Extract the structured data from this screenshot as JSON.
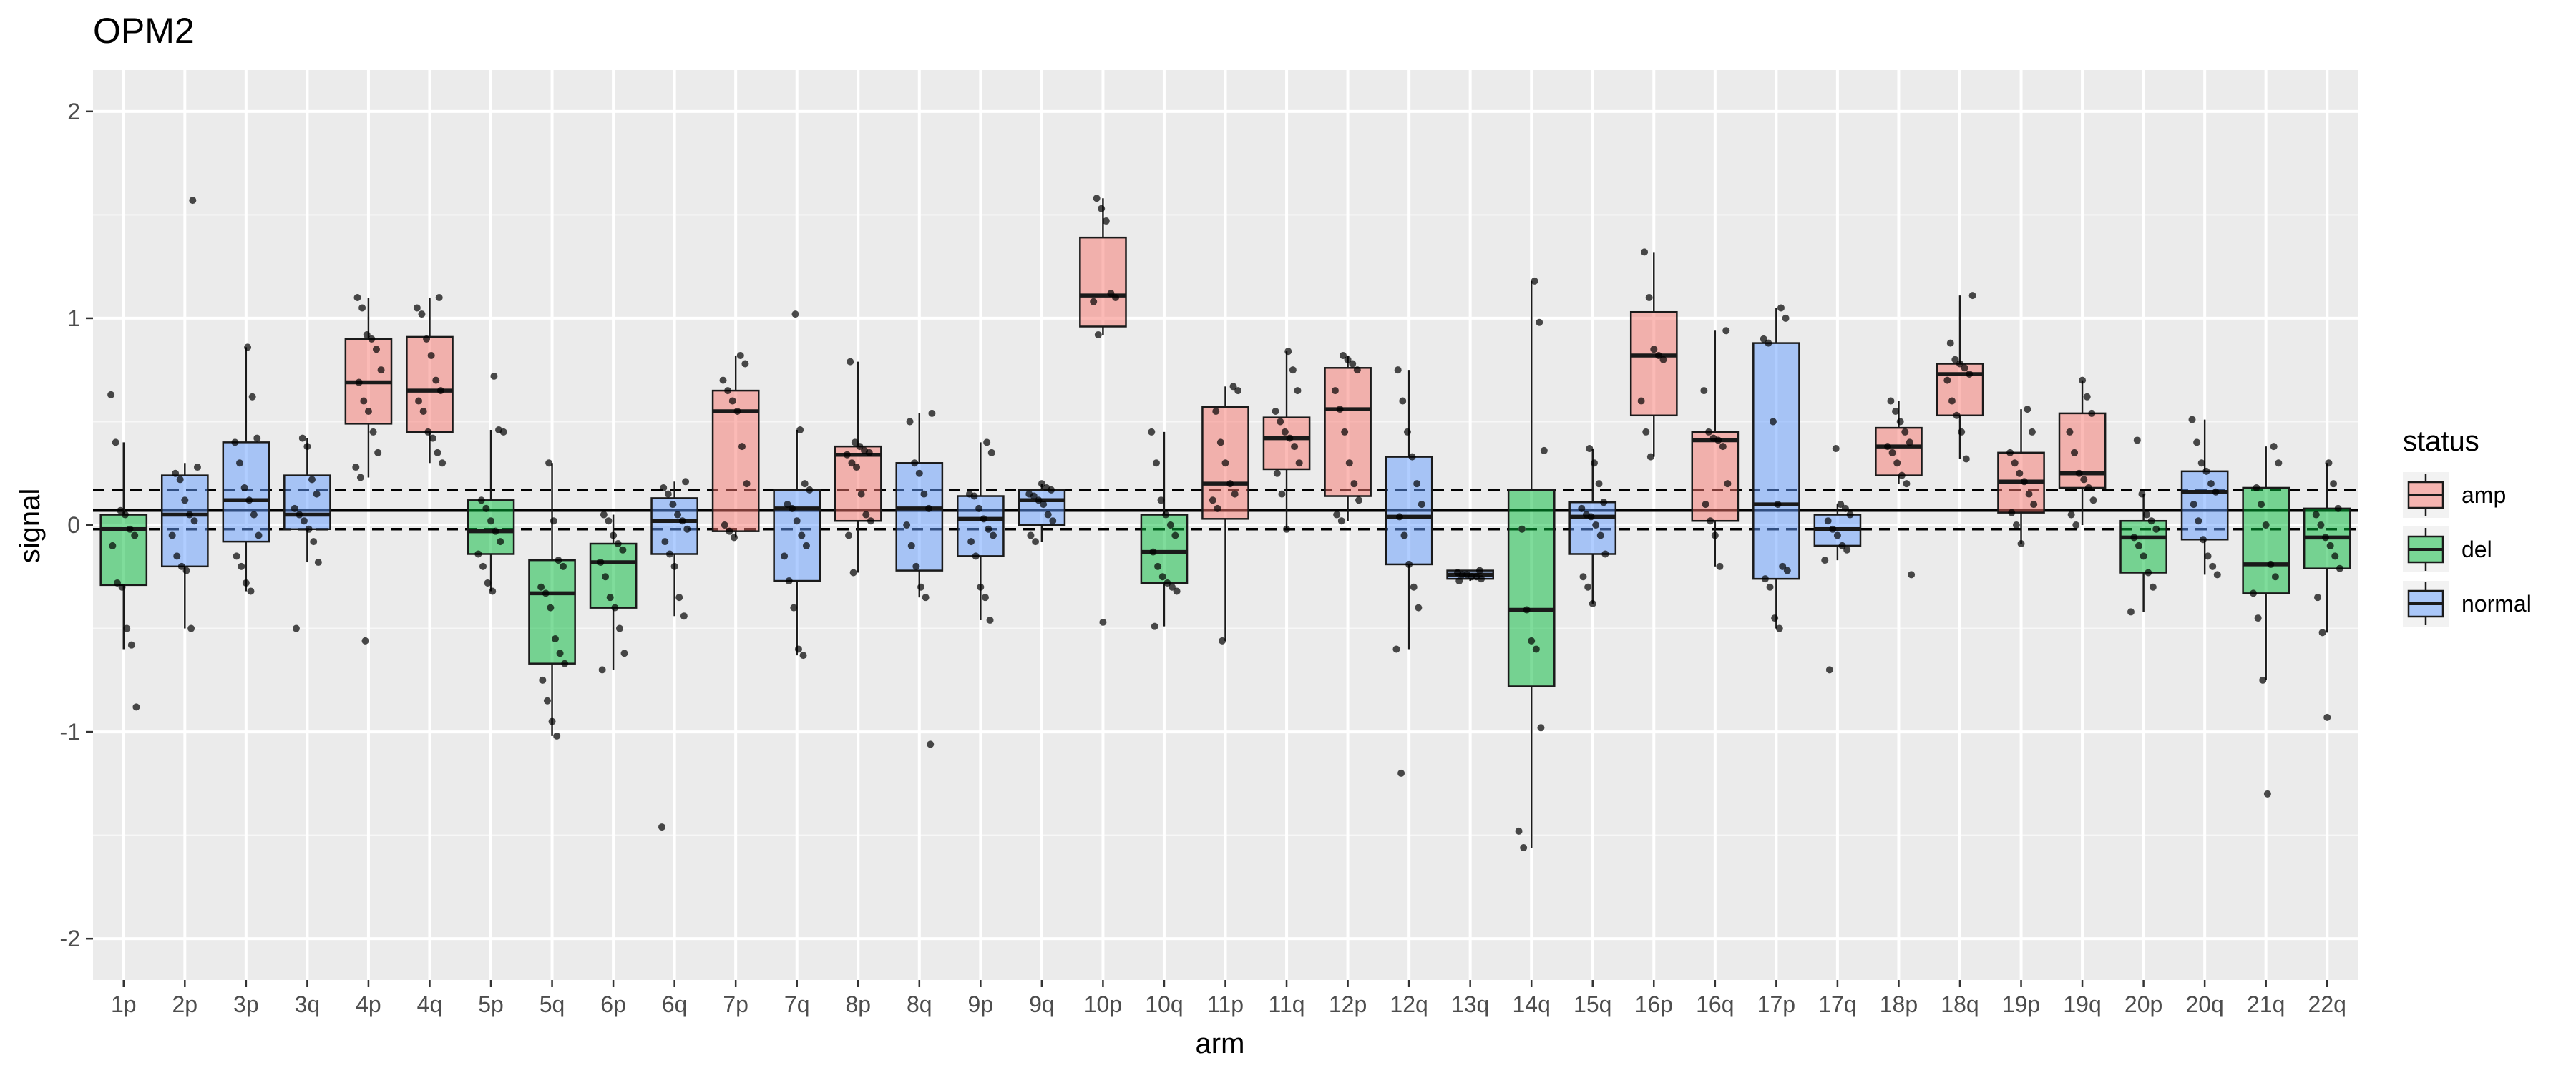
{
  "chart_data": {
    "type": "boxplot",
    "title": "OPM2",
    "xlabel": "arm",
    "ylabel": "signal",
    "ylim": [
      -2.2,
      2.2
    ],
    "yticks": [
      -2,
      -1,
      0,
      1,
      2
    ],
    "grid": true,
    "reference_lines": [
      {
        "y": 0.07,
        "style": "solid"
      },
      {
        "y": 0.17,
        "style": "dashed"
      },
      {
        "y": -0.02,
        "style": "dashed"
      }
    ],
    "legend": {
      "title": "status",
      "position": "right",
      "entries": [
        {
          "label": "amp",
          "color": "#F8766D"
        },
        {
          "label": "del",
          "color": "#00BA38"
        },
        {
          "label": "normal",
          "color": "#619CFF"
        }
      ]
    },
    "categories": [
      "1p",
      "2p",
      "3p",
      "3q",
      "4p",
      "4q",
      "5p",
      "5q",
      "6p",
      "6q",
      "7p",
      "7q",
      "8p",
      "8q",
      "9p",
      "9q",
      "10p",
      "10q",
      "11p",
      "11q",
      "12p",
      "12q",
      "13q",
      "14q",
      "15q",
      "16p",
      "16q",
      "17p",
      "17q",
      "18p",
      "18q",
      "19p",
      "19q",
      "20p",
      "20q",
      "21q",
      "22q"
    ],
    "boxes": [
      {
        "arm": "1p",
        "status": "del",
        "q1": -0.29,
        "median": -0.02,
        "q3": 0.05,
        "whisker_low": -0.6,
        "whisker_high": 0.4,
        "points": [
          0.63,
          0.4,
          0.07,
          0.05,
          -0.02,
          -0.05,
          -0.1,
          -0.28,
          -0.3,
          -0.5,
          -0.58,
          -0.88
        ]
      },
      {
        "arm": "2p",
        "status": "normal",
        "q1": -0.2,
        "median": 0.05,
        "q3": 0.24,
        "whisker_low": -0.5,
        "whisker_high": 0.3,
        "points": [
          1.57,
          0.28,
          0.25,
          0.22,
          0.12,
          0.05,
          0.02,
          -0.05,
          -0.15,
          -0.2,
          -0.22,
          -0.5
        ]
      },
      {
        "arm": "3p",
        "status": "normal",
        "q1": -0.08,
        "median": 0.12,
        "q3": 0.4,
        "whisker_low": -0.32,
        "whisker_high": 0.86,
        "points": [
          0.86,
          0.62,
          0.42,
          0.4,
          0.3,
          0.18,
          0.12,
          0.05,
          -0.05,
          -0.15,
          -0.2,
          -0.28,
          -0.32
        ]
      },
      {
        "arm": "3q",
        "status": "normal",
        "q1": -0.02,
        "median": 0.05,
        "q3": 0.24,
        "whisker_low": -0.18,
        "whisker_high": 0.42,
        "points": [
          0.42,
          0.38,
          0.22,
          0.15,
          0.08,
          0.05,
          0.02,
          -0.02,
          -0.08,
          -0.18,
          -0.5
        ]
      },
      {
        "arm": "4p",
        "status": "amp",
        "q1": 0.49,
        "median": 0.69,
        "q3": 0.9,
        "whisker_low": 0.23,
        "whisker_high": 1.1,
        "points": [
          1.1,
          1.05,
          0.92,
          0.9,
          0.85,
          0.75,
          0.69,
          0.6,
          0.55,
          0.45,
          0.35,
          0.28,
          0.23,
          -0.56
        ]
      },
      {
        "arm": "4q",
        "status": "amp",
        "q1": 0.45,
        "median": 0.65,
        "q3": 0.91,
        "whisker_low": 0.3,
        "whisker_high": 1.1,
        "points": [
          1.1,
          1.05,
          1.02,
          0.9,
          0.82,
          0.7,
          0.65,
          0.6,
          0.55,
          0.45,
          0.42,
          0.35,
          0.3
        ]
      },
      {
        "arm": "5p",
        "status": "del",
        "q1": -0.14,
        "median": -0.03,
        "q3": 0.12,
        "whisker_low": -0.32,
        "whisker_high": 0.46,
        "points": [
          0.72,
          0.46,
          0.45,
          0.12,
          0.08,
          0.02,
          -0.03,
          -0.08,
          -0.14,
          -0.2,
          -0.28,
          -0.32
        ]
      },
      {
        "arm": "5q",
        "status": "del",
        "q1": -0.67,
        "median": -0.33,
        "q3": -0.17,
        "whisker_low": -1.02,
        "whisker_high": 0.3,
        "points": [
          0.3,
          0.02,
          -0.17,
          -0.2,
          -0.3,
          -0.33,
          -0.4,
          -0.55,
          -0.62,
          -0.67,
          -0.75,
          -0.85,
          -0.95,
          -1.02
        ]
      },
      {
        "arm": "6p",
        "status": "del",
        "q1": -0.4,
        "median": -0.18,
        "q3": -0.09,
        "whisker_low": -0.7,
        "whisker_high": 0.05,
        "points": [
          0.05,
          0.02,
          -0.05,
          -0.09,
          -0.12,
          -0.18,
          -0.25,
          -0.35,
          -0.4,
          -0.5,
          -0.62,
          -0.7
        ]
      },
      {
        "arm": "6q",
        "status": "normal",
        "q1": -0.14,
        "median": 0.02,
        "q3": 0.13,
        "whisker_low": -0.44,
        "whisker_high": 0.21,
        "points": [
          0.21,
          0.18,
          0.15,
          0.1,
          0.05,
          0.02,
          -0.02,
          -0.08,
          -0.14,
          -0.2,
          -0.35,
          -0.44,
          -1.46
        ]
      },
      {
        "arm": "7p",
        "status": "amp",
        "q1": -0.03,
        "median": 0.55,
        "q3": 0.65,
        "whisker_low": -0.06,
        "whisker_high": 0.82,
        "points": [
          0.82,
          0.78,
          0.7,
          0.65,
          0.6,
          0.55,
          0.38,
          0.2,
          0.0,
          -0.03,
          -0.06
        ]
      },
      {
        "arm": "7q",
        "status": "normal",
        "q1": -0.27,
        "median": 0.08,
        "q3": 0.17,
        "whisker_low": -0.63,
        "whisker_high": 0.46,
        "points": [
          1.02,
          0.46,
          0.2,
          0.17,
          0.1,
          0.08,
          0.02,
          -0.05,
          -0.1,
          -0.15,
          -0.27,
          -0.4,
          -0.6,
          -0.63
        ]
      },
      {
        "arm": "8p",
        "status": "amp",
        "q1": 0.02,
        "median": 0.34,
        "q3": 0.38,
        "whisker_low": -0.23,
        "whisker_high": 0.79,
        "points": [
          0.79,
          0.4,
          0.38,
          0.36,
          0.35,
          0.34,
          0.3,
          0.28,
          0.15,
          0.05,
          0.02,
          -0.05,
          -0.23
        ]
      },
      {
        "arm": "8q",
        "status": "normal",
        "q1": -0.22,
        "median": 0.08,
        "q3": 0.3,
        "whisker_low": -0.35,
        "whisker_high": 0.54,
        "points": [
          0.54,
          0.5,
          0.3,
          0.25,
          0.15,
          0.08,
          0.0,
          -0.1,
          -0.2,
          -0.3,
          -0.35,
          -1.06
        ]
      },
      {
        "arm": "9p",
        "status": "normal",
        "q1": -0.15,
        "median": 0.03,
        "q3": 0.14,
        "whisker_low": -0.46,
        "whisker_high": 0.4,
        "points": [
          0.4,
          0.35,
          0.15,
          0.14,
          0.08,
          0.03,
          -0.02,
          -0.05,
          -0.08,
          -0.15,
          -0.3,
          -0.35,
          -0.46
        ]
      },
      {
        "arm": "9q",
        "status": "normal",
        "q1": 0.0,
        "median": 0.12,
        "q3": 0.17,
        "whisker_low": -0.08,
        "whisker_high": 0.2,
        "points": [
          0.2,
          0.18,
          0.17,
          0.15,
          0.14,
          0.12,
          0.1,
          0.05,
          0.02,
          -0.05,
          -0.08
        ]
      },
      {
        "arm": "10p",
        "status": "amp",
        "q1": 0.96,
        "median": 1.11,
        "q3": 1.39,
        "whisker_low": 0.92,
        "whisker_high": 1.58,
        "points": [
          1.58,
          1.53,
          1.47,
          1.12,
          1.1,
          1.08,
          0.92,
          -0.47
        ]
      },
      {
        "arm": "10q",
        "status": "del",
        "q1": -0.28,
        "median": -0.13,
        "q3": 0.05,
        "whisker_low": -0.49,
        "whisker_high": 0.45,
        "points": [
          0.45,
          0.3,
          0.12,
          0.05,
          0.0,
          -0.05,
          -0.13,
          -0.2,
          -0.25,
          -0.28,
          -0.3,
          -0.32,
          -0.49
        ]
      },
      {
        "arm": "11p",
        "status": "amp",
        "q1": 0.03,
        "median": 0.2,
        "q3": 0.57,
        "whisker_low": -0.56,
        "whisker_high": 0.67,
        "points": [
          0.67,
          0.65,
          0.55,
          0.4,
          0.3,
          0.2,
          0.15,
          0.12,
          0.08,
          -0.56
        ]
      },
      {
        "arm": "11q",
        "status": "amp",
        "q1": 0.27,
        "median": 0.42,
        "q3": 0.52,
        "whisker_low": -0.02,
        "whisker_high": 0.84,
        "points": [
          0.84,
          0.75,
          0.65,
          0.55,
          0.5,
          0.45,
          0.42,
          0.38,
          0.3,
          0.25,
          0.15,
          -0.02
        ]
      },
      {
        "arm": "12p",
        "status": "amp",
        "q1": 0.14,
        "median": 0.56,
        "q3": 0.76,
        "whisker_low": 0.02,
        "whisker_high": 0.82,
        "points": [
          0.82,
          0.8,
          0.78,
          0.75,
          0.65,
          0.56,
          0.45,
          0.3,
          0.2,
          0.12,
          0.05,
          0.02
        ]
      },
      {
        "arm": "12q",
        "status": "normal",
        "q1": -0.19,
        "median": 0.04,
        "q3": 0.33,
        "whisker_low": -0.6,
        "whisker_high": 0.75,
        "points": [
          0.75,
          0.6,
          0.45,
          0.33,
          0.2,
          0.1,
          0.04,
          -0.05,
          -0.19,
          -0.3,
          -0.4,
          -0.6,
          -1.2
        ]
      },
      {
        "arm": "13q",
        "status": "normal",
        "q1": -0.26,
        "median": -0.24,
        "q3": -0.22,
        "whisker_low": -0.27,
        "whisker_high": -0.22,
        "points": [
          -0.22,
          -0.23,
          -0.24,
          -0.24,
          -0.25,
          -0.25,
          -0.26,
          -0.27
        ]
      },
      {
        "arm": "14q",
        "status": "del",
        "q1": -0.78,
        "median": -0.41,
        "q3": 0.17,
        "whisker_low": -1.56,
        "whisker_high": 1.18,
        "points": [
          1.18,
          0.98,
          0.36,
          -0.02,
          -0.41,
          -0.56,
          -0.6,
          -0.98,
          -1.48,
          -1.56
        ]
      },
      {
        "arm": "15q",
        "status": "normal",
        "q1": -0.14,
        "median": 0.04,
        "q3": 0.11,
        "whisker_low": -0.38,
        "whisker_high": 0.37,
        "points": [
          0.37,
          0.3,
          0.2,
          0.11,
          0.08,
          0.05,
          0.04,
          0.0,
          -0.05,
          -0.14,
          -0.25,
          -0.3,
          -0.38
        ]
      },
      {
        "arm": "16p",
        "status": "amp",
        "q1": 0.53,
        "median": 0.82,
        "q3": 1.03,
        "whisker_low": 0.33,
        "whisker_high": 1.32,
        "points": [
          1.32,
          1.1,
          0.85,
          0.82,
          0.8,
          0.6,
          0.45,
          0.33
        ]
      },
      {
        "arm": "16q",
        "status": "amp",
        "q1": 0.02,
        "median": 0.41,
        "q3": 0.45,
        "whisker_low": -0.2,
        "whisker_high": 0.94,
        "points": [
          0.94,
          0.65,
          0.45,
          0.42,
          0.41,
          0.38,
          0.2,
          0.1,
          0.02,
          -0.05,
          -0.2
        ]
      },
      {
        "arm": "17p",
        "status": "normal",
        "q1": -0.26,
        "median": 0.1,
        "q3": 0.88,
        "whisker_low": -0.5,
        "whisker_high": 1.05,
        "points": [
          1.05,
          1.0,
          0.9,
          0.88,
          0.5,
          0.1,
          -0.2,
          -0.22,
          -0.26,
          -0.3,
          -0.45,
          -0.5
        ]
      },
      {
        "arm": "17q",
        "status": "normal",
        "q1": -0.1,
        "median": -0.02,
        "q3": 0.05,
        "whisker_low": -0.17,
        "whisker_high": 0.1,
        "points": [
          0.37,
          0.1,
          0.08,
          0.05,
          0.02,
          -0.02,
          -0.05,
          -0.1,
          -0.12,
          -0.17,
          -0.7
        ]
      },
      {
        "arm": "18p",
        "status": "amp",
        "q1": 0.24,
        "median": 0.38,
        "q3": 0.47,
        "whisker_low": 0.2,
        "whisker_high": 0.6,
        "points": [
          0.6,
          0.55,
          0.5,
          0.45,
          0.4,
          0.38,
          0.35,
          0.3,
          0.24,
          0.2,
          -0.24
        ]
      },
      {
        "arm": "18q",
        "status": "amp",
        "q1": 0.53,
        "median": 0.73,
        "q3": 0.78,
        "whisker_low": 0.32,
        "whisker_high": 1.11,
        "points": [
          1.11,
          0.88,
          0.8,
          0.78,
          0.76,
          0.73,
          0.7,
          0.6,
          0.53,
          0.45,
          0.32
        ]
      },
      {
        "arm": "19p",
        "status": "amp",
        "q1": 0.06,
        "median": 0.21,
        "q3": 0.35,
        "whisker_low": -0.09,
        "whisker_high": 0.56,
        "points": [
          0.56,
          0.45,
          0.35,
          0.3,
          0.25,
          0.21,
          0.15,
          0.1,
          0.06,
          0.0,
          -0.09
        ]
      },
      {
        "arm": "19q",
        "status": "amp",
        "q1": 0.18,
        "median": 0.25,
        "q3": 0.54,
        "whisker_low": 0.0,
        "whisker_high": 0.7,
        "points": [
          0.7,
          0.62,
          0.54,
          0.45,
          0.35,
          0.25,
          0.22,
          0.18,
          0.12,
          0.05,
          0.0
        ]
      },
      {
        "arm": "20p",
        "status": "del",
        "q1": -0.23,
        "median": -0.06,
        "q3": 0.02,
        "whisker_low": -0.42,
        "whisker_high": 0.15,
        "points": [
          0.41,
          0.15,
          0.05,
          0.02,
          -0.02,
          -0.06,
          -0.1,
          -0.15,
          -0.23,
          -0.3,
          -0.42
        ]
      },
      {
        "arm": "20q",
        "status": "normal",
        "q1": -0.07,
        "median": 0.16,
        "q3": 0.26,
        "whisker_low": -0.24,
        "whisker_high": 0.51,
        "points": [
          0.51,
          0.4,
          0.3,
          0.26,
          0.2,
          0.16,
          0.1,
          0.02,
          -0.07,
          -0.15,
          -0.2,
          -0.24
        ]
      },
      {
        "arm": "21q",
        "status": "del",
        "q1": -0.33,
        "median": -0.19,
        "q3": 0.18,
        "whisker_low": -0.75,
        "whisker_high": 0.38,
        "points": [
          0.38,
          0.3,
          0.18,
          0.1,
          0.0,
          -0.19,
          -0.25,
          -0.33,
          -0.45,
          -0.75,
          -1.3
        ]
      },
      {
        "arm": "22q",
        "status": "del",
        "q1": -0.21,
        "median": -0.06,
        "q3": 0.08,
        "whisker_low": -0.52,
        "whisker_high": 0.3,
        "points": [
          0.3,
          0.2,
          0.08,
          0.05,
          0.0,
          -0.06,
          -0.1,
          -0.15,
          -0.21,
          -0.35,
          -0.52,
          -0.93
        ]
      }
    ]
  }
}
